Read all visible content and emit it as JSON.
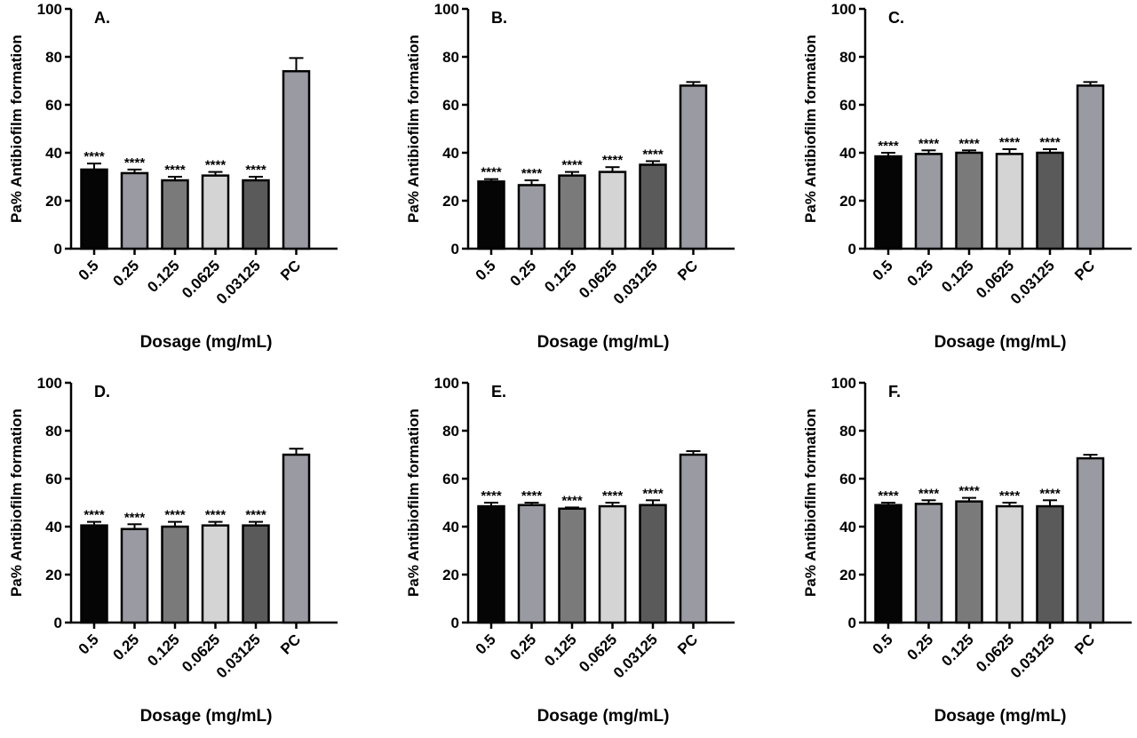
{
  "figure": {
    "colors": [
      "#050505",
      "#9a9aa2",
      "#7a7a7a",
      "#d4d4d4",
      "#5a5a5a",
      "#9a9aa2"
    ]
  },
  "chart_data": [
    {
      "panel": "A.",
      "type": "bar",
      "categories": [
        "0.5",
        "0.25",
        "0.125",
        "0.0625",
        "0.03125",
        "PC"
      ],
      "values": [
        33,
        31.5,
        28.5,
        30.5,
        28.5,
        74
      ],
      "errors": [
        2.5,
        1.5,
        1.5,
        1.5,
        1.5,
        5.5
      ],
      "significance": [
        "****",
        "****",
        "****",
        "****",
        "****",
        ""
      ],
      "xlabel": "Dosage (mg/mL)",
      "ylabel": "Pa% Antibiofilm formation",
      "ylim": [
        0,
        100
      ],
      "yticks": [
        "0",
        "20",
        "40",
        "60",
        "80",
        "100"
      ],
      "grid": false
    },
    {
      "panel": "B.",
      "type": "bar",
      "categories": [
        "0.5",
        "0.25",
        "0.125",
        "0.0625",
        "0.03125",
        "PC"
      ],
      "values": [
        28,
        26.5,
        30.5,
        32,
        35,
        68
      ],
      "errors": [
        1,
        2,
        1.5,
        2,
        1.5,
        1.5
      ],
      "significance": [
        "****",
        "****",
        "****",
        "****",
        "****",
        ""
      ],
      "xlabel": "Dosage (mg/mL)",
      "ylabel": "Pa% Antibiofilm formation",
      "ylim": [
        0,
        100
      ],
      "yticks": [
        "0",
        "20",
        "40",
        "60",
        "80",
        "100"
      ],
      "grid": false
    },
    {
      "panel": "C.",
      "type": "bar",
      "categories": [
        "0.5",
        "0.25",
        "0.125",
        "0.0625",
        "0.03125",
        "PC"
      ],
      "values": [
        38.5,
        39.5,
        40,
        39.5,
        40,
        68
      ],
      "errors": [
        1.5,
        1.5,
        1,
        2,
        1.5,
        1.5
      ],
      "significance": [
        "****",
        "****",
        "****",
        "****",
        "****",
        ""
      ],
      "xlabel": "Dosage (mg/mL)",
      "ylabel": "Pa% Antibiofilm formation",
      "ylim": [
        0,
        100
      ],
      "yticks": [
        "0",
        "20",
        "40",
        "60",
        "80",
        "100"
      ],
      "grid": false
    },
    {
      "panel": "D.",
      "type": "bar",
      "categories": [
        "0.5",
        "0.25",
        "0.125",
        "0.0625",
        "0.03125",
        "PC"
      ],
      "values": [
        40.5,
        39,
        40,
        40.5,
        40.5,
        70
      ],
      "errors": [
        1.5,
        2,
        2,
        1.5,
        1.5,
        2.5
      ],
      "significance": [
        "****",
        "****",
        "****",
        "****",
        "****",
        ""
      ],
      "xlabel": "Dosage (mg/mL)",
      "ylabel": "Pa% Antibiofilm formation",
      "ylim": [
        0,
        100
      ],
      "yticks": [
        "0",
        "20",
        "40",
        "60",
        "80",
        "100"
      ],
      "grid": false
    },
    {
      "panel": "E.",
      "type": "bar",
      "categories": [
        "0.5",
        "0.25",
        "0.125",
        "0.0625",
        "0.03125",
        "PC"
      ],
      "values": [
        48.5,
        49,
        47.5,
        48.5,
        49,
        70
      ],
      "errors": [
        1.5,
        1,
        0.5,
        1.5,
        2,
        1.5
      ],
      "significance": [
        "****",
        "****",
        "****",
        "****",
        "****",
        ""
      ],
      "xlabel": "Dosage (mg/mL)",
      "ylabel": "Pa% Antibiofilm formation",
      "ylim": [
        0,
        100
      ],
      "yticks": [
        "0",
        "20",
        "40",
        "60",
        "80",
        "100"
      ],
      "grid": false
    },
    {
      "panel": "F.",
      "type": "bar",
      "categories": [
        "0.5",
        "0.25",
        "0.125",
        "0.0625",
        "0.03125",
        "PC"
      ],
      "values": [
        49,
        49.5,
        50.5,
        48.5,
        48.5,
        68.5
      ],
      "errors": [
        1,
        1.5,
        1.5,
        1.5,
        2.5,
        1.5
      ],
      "significance": [
        "****",
        "****",
        "****",
        "****",
        "****",
        ""
      ],
      "xlabel": "Dosage (mg/mL)",
      "ylabel": "Pa% Antibiofilm formation",
      "ylim": [
        0,
        100
      ],
      "yticks": [
        "0",
        "20",
        "40",
        "60",
        "80",
        "100"
      ],
      "grid": false
    }
  ]
}
